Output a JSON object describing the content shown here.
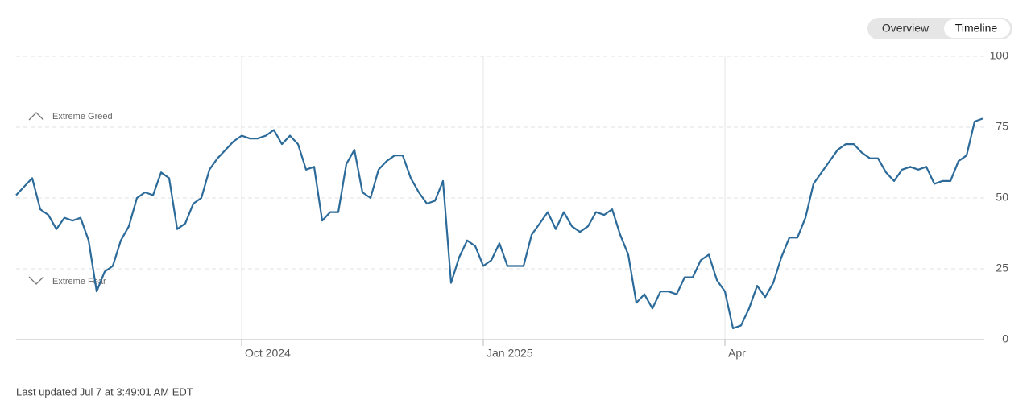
{
  "chart_data": {
    "type": "line",
    "categories": [
      null,
      null,
      null,
      null,
      null,
      null,
      null,
      null,
      null,
      null,
      null,
      null,
      null,
      null,
      null,
      null,
      null,
      null,
      null,
      null,
      null,
      null,
      null,
      null,
      null,
      null,
      null,
      null,
      "Oct 2024",
      null,
      null,
      null,
      null,
      null,
      null,
      null,
      null,
      null,
      null,
      null,
      null,
      null,
      null,
      null,
      null,
      null,
      null,
      null,
      null,
      null,
      null,
      null,
      null,
      null,
      null,
      null,
      null,
      null,
      "Jan 2025",
      null,
      null,
      null,
      null,
      null,
      null,
      null,
      null,
      null,
      null,
      null,
      null,
      null,
      null,
      null,
      null,
      null,
      null,
      null,
      null,
      null,
      null,
      null,
      null,
      null,
      null,
      null,
      null,
      null,
      "Apr",
      null,
      null,
      null,
      null,
      null,
      null,
      null,
      null,
      null,
      null,
      null,
      null,
      null,
      null,
      null,
      null,
      null,
      null,
      null,
      null,
      null,
      null,
      null,
      null,
      null,
      null,
      null,
      null,
      null,
      null,
      null,
      null
    ],
    "series": [
      {
        "color": "#2b6a99",
        "values": [
          51,
          54,
          57,
          46,
          44,
          39,
          43,
          42,
          43,
          35,
          17,
          24,
          26,
          35,
          40,
          50,
          52,
          51,
          59,
          57,
          39,
          41,
          48,
          50,
          60,
          64,
          67,
          70,
          72,
          71,
          71,
          72,
          74,
          69,
          72,
          69,
          60,
          61,
          42,
          45,
          45,
          62,
          67,
          52,
          50,
          60,
          63,
          65,
          65,
          57,
          52,
          48,
          49,
          56,
          20,
          29,
          35,
          33,
          26,
          28,
          34,
          26,
          26,
          26,
          37,
          41,
          45,
          39,
          45,
          40,
          38,
          40,
          45,
          44,
          46,
          37,
          30,
          13,
          16,
          11,
          17,
          17,
          16,
          22,
          22,
          28,
          30,
          21,
          17,
          4,
          5,
          11,
          19,
          15,
          20,
          29,
          36,
          36,
          43,
          55,
          59,
          63,
          67,
          69,
          69,
          66,
          64,
          64,
          59,
          56,
          60,
          61,
          60,
          61,
          55,
          56,
          56,
          63,
          65,
          77,
          78
        ]
      }
    ],
    "ylim": [
      0,
      100
    ],
    "yticks": [
      0,
      25,
      50,
      75,
      100
    ],
    "grid": true,
    "annotations": [
      "Extreme Greed",
      "Extreme Fear"
    ],
    "buttons": [
      "Overview",
      "Timeline"
    ],
    "footer": "Last updated Jul 7 at 3:49:01 AM EDT"
  }
}
